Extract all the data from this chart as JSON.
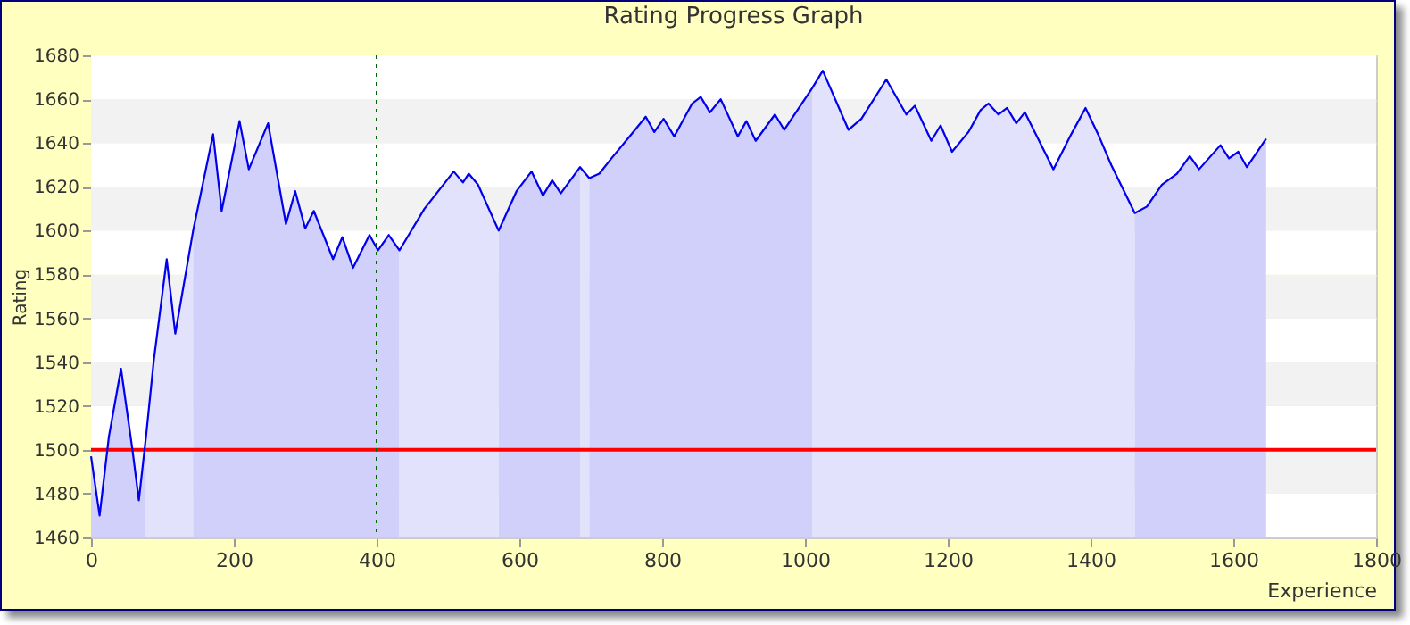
{
  "chart_data": {
    "type": "line",
    "title": "Rating Progress Graph",
    "xlabel": "Experience",
    "ylabel": "Rating",
    "xlim": [
      0,
      1800
    ],
    "xticks": [
      0,
      200,
      400,
      600,
      800,
      1000,
      1200,
      1400,
      1600,
      1800
    ],
    "ylim": [
      1460,
      1680
    ],
    "yticks": [
      1460,
      1480,
      1500,
      1520,
      1540,
      1560,
      1580,
      1600,
      1620,
      1640,
      1660,
      1680
    ],
    "grid": "y",
    "x": [
      0,
      12,
      25,
      42,
      58,
      67,
      77,
      88,
      106,
      118,
      143,
      171,
      183,
      208,
      221,
      248,
      273,
      286,
      300,
      312,
      339,
      352,
      367,
      390,
      402,
      417,
      432,
      467,
      508,
      521,
      529,
      542,
      571,
      596,
      617,
      633,
      646,
      658,
      685,
      698,
      712,
      729,
      762,
      777,
      789,
      802,
      817,
      842,
      854,
      867,
      882,
      906,
      918,
      931,
      958,
      971,
      1010,
      1025,
      1061,
      1079,
      1114,
      1142,
      1154,
      1177,
      1190,
      1206,
      1229,
      1246,
      1257,
      1271,
      1283,
      1296,
      1308,
      1348,
      1373,
      1393,
      1412,
      1429,
      1462,
      1479,
      1500,
      1521,
      1539,
      1552,
      1582,
      1594,
      1607,
      1619,
      1646
    ],
    "series": [
      {
        "color": "#0000ee",
        "values": [
          1497,
          1470,
          1506,
          1537,
          1500,
          1477,
          1506,
          1541,
          1587,
          1553,
          1600,
          1644,
          1609,
          1650,
          1628,
          1649,
          1603,
          1618,
          1601,
          1609,
          1587,
          1597,
          1583,
          1598,
          1591,
          1598,
          1591,
          1610,
          1627,
          1622,
          1626,
          1621,
          1600,
          1618,
          1627,
          1616,
          1623,
          1617,
          1629,
          1624,
          1626,
          1633,
          1646,
          1652,
          1645,
          1651,
          1643,
          1658,
          1661,
          1654,
          1660,
          1643,
          1650,
          1641,
          1653,
          1646,
          1665,
          1673,
          1646,
          1651,
          1669,
          1653,
          1657,
          1641,
          1648,
          1636,
          1645,
          1655,
          1658,
          1653,
          1656,
          1649,
          1654,
          1628,
          1644,
          1656,
          1643,
          1630,
          1608,
          1611,
          1621,
          1626,
          1634,
          1628,
          1639,
          1633,
          1636,
          1629,
          1642
        ]
      },
      {
        "type": "area",
        "color": "#d0d0fa",
        "x": [
          0,
          12,
          25,
          42,
          58,
          67,
          77
        ],
        "values": [
          1497,
          1470,
          1506,
          1537,
          1500,
          1477,
          1506
        ]
      },
      {
        "type": "area",
        "color": "#e2e2fc",
        "x": [
          77,
          88,
          106,
          118,
          143
        ],
        "values": [
          1506,
          1541,
          1587,
          1553,
          1600
        ]
      },
      {
        "type": "area",
        "color": "#d0d0fa",
        "x": [
          143,
          171,
          183,
          208,
          221,
          248,
          273,
          286,
          300,
          312,
          339,
          352,
          367,
          390,
          402,
          417,
          432
        ],
        "values": [
          1600,
          1644,
          1609,
          1650,
          1628,
          1649,
          1603,
          1618,
          1601,
          1609,
          1587,
          1597,
          1583,
          1598,
          1591,
          1598,
          1591
        ]
      },
      {
        "type": "area",
        "color": "#e2e2fc",
        "x": [
          432,
          467,
          508,
          521,
          529,
          542,
          571
        ],
        "values": [
          1591,
          1610,
          1627,
          1622,
          1626,
          1621,
          1600
        ]
      },
      {
        "type": "area",
        "color": "#d0d0fa",
        "x": [
          571,
          596,
          617,
          633,
          646,
          658,
          685
        ],
        "values": [
          1600,
          1618,
          1627,
          1616,
          1623,
          1617,
          1629
        ]
      },
      {
        "type": "area",
        "color": "#e2e2fc",
        "x": [
          685,
          698
        ],
        "values": [
          1629,
          1624
        ]
      },
      {
        "type": "area",
        "color": "#d0d0fa",
        "x": [
          698,
          712,
          729,
          762,
          777,
          789,
          802,
          817,
          842,
          854,
          867,
          882,
          906,
          918,
          931,
          958,
          971,
          1010
        ],
        "values": [
          1624,
          1626,
          1633,
          1646,
          1652,
          1645,
          1651,
          1643,
          1658,
          1661,
          1654,
          1660,
          1643,
          1650,
          1641,
          1653,
          1646,
          1665
        ]
      },
      {
        "type": "area",
        "color": "#e2e2fc",
        "x": [
          1010,
          1025,
          1061,
          1079,
          1114,
          1142,
          1154,
          1177,
          1190,
          1206,
          1229,
          1246,
          1257,
          1271,
          1283,
          1296,
          1308,
          1348,
          1373,
          1393,
          1412,
          1429,
          1462
        ],
        "values": [
          1665,
          1673,
          1646,
          1651,
          1669,
          1653,
          1657,
          1641,
          1648,
          1636,
          1645,
          1655,
          1658,
          1653,
          1656,
          1649,
          1654,
          1628,
          1644,
          1656,
          1643,
          1630,
          1608
        ]
      },
      {
        "type": "area",
        "color": "#d0d0fa",
        "x": [
          1462,
          1479,
          1500,
          1521,
          1539,
          1552,
          1582,
          1594,
          1607,
          1619,
          1646
        ],
        "values": [
          1608,
          1611,
          1621,
          1626,
          1634,
          1628,
          1639,
          1633,
          1636,
          1629,
          1642
        ]
      }
    ],
    "ref_lines": [
      {
        "axis": "y",
        "value": 1500,
        "color": "#ff0000",
        "line_style": "solid"
      },
      {
        "axis": "x",
        "value": 400,
        "color": "#006600",
        "line_style": "dotted"
      }
    ]
  }
}
